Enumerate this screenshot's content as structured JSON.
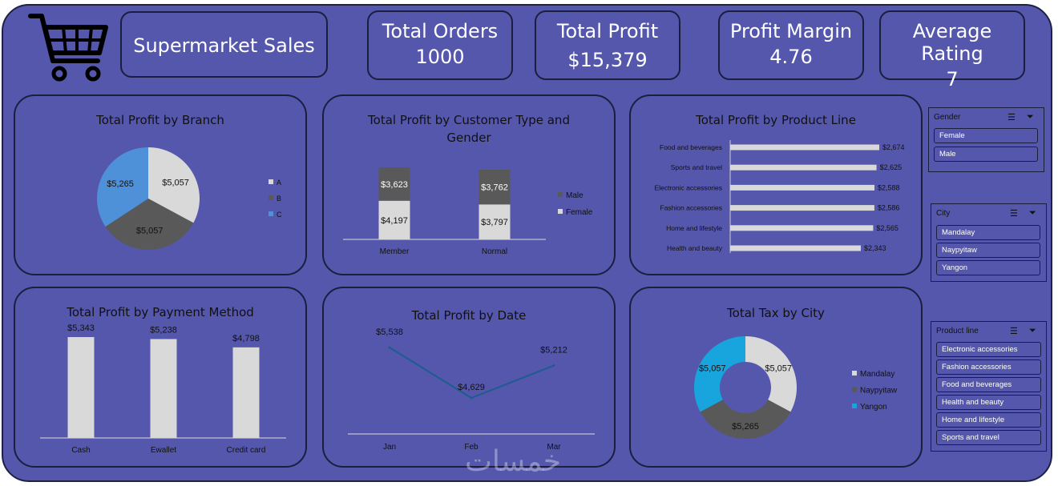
{
  "header": {
    "title": "Supermarket Sales",
    "kpis": [
      {
        "label": "Total Orders",
        "value": "1000"
      },
      {
        "label": "Total Profit",
        "value": "$15,379"
      },
      {
        "label": "Profit Margin",
        "value": "4.76"
      },
      {
        "label": "Average Rating",
        "value": "7"
      }
    ]
  },
  "colors": {
    "background": "#5457ac",
    "border": "#1b1e3e",
    "light": "#d9d9d9",
    "dark": "#595959",
    "blue": "#4f91d8",
    "cyan": "#18a4dc",
    "line": "#1d5c8e"
  },
  "icons": {
    "logo": "shopping-cart-icon",
    "multiselect": "multi-select-icon",
    "clear_filter": "clear-filter-icon"
  },
  "chart_data": [
    {
      "type": "pie",
      "title": "Total Profit by Branch",
      "categories": [
        "A",
        "B",
        "C"
      ],
      "values": [
        5057,
        5057,
        5265
      ],
      "labels": [
        "$5,057",
        "$5,057",
        "$5,265"
      ],
      "legend": "right"
    },
    {
      "type": "bar",
      "stacked": true,
      "title": "Total Profit by Customer Type and Gender",
      "categories": [
        "Member",
        "Normal"
      ],
      "series": [
        {
          "name": "Female",
          "values": [
            4197,
            3797
          ],
          "labels": [
            "$4,197",
            "$3,797"
          ]
        },
        {
          "name": "Male",
          "values": [
            3623,
            3762
          ],
          "labels": [
            "$3,623",
            "$3,762"
          ]
        }
      ],
      "legend": "right"
    },
    {
      "type": "bar",
      "orientation": "horizontal",
      "title": "Total Profit by Product Line",
      "categories": [
        "Food and beverages",
        "Sports and travel",
        "Electronic accessories",
        "Fashion accessories",
        "Home and lifestyle",
        "Health and beauty"
      ],
      "values": [
        2674,
        2625,
        2588,
        2586,
        2565,
        2343
      ],
      "labels": [
        "$2,674",
        "$2,625",
        "$2,588",
        "$2,586",
        "$2,565",
        "$2,343"
      ]
    },
    {
      "type": "bar",
      "title": "Total Profit by Payment Method",
      "categories": [
        "Cash",
        "Ewallet",
        "Credit card"
      ],
      "values": [
        5343,
        5238,
        4798
      ],
      "labels": [
        "$5,343",
        "$5,238",
        "$4,798"
      ]
    },
    {
      "type": "line",
      "title": "Total Profit by Date",
      "categories": [
        "Jan",
        "Feb",
        "Mar"
      ],
      "values": [
        5538,
        4629,
        5212
      ],
      "labels": [
        "$5,538",
        "$4,629",
        "$5,212"
      ]
    },
    {
      "type": "pie",
      "donut": true,
      "title": "Total Tax by City",
      "categories": [
        "Mandalay",
        "Naypyitaw",
        "Yangon"
      ],
      "values": [
        5057,
        5265,
        5057
      ],
      "labels": [
        "$5,057",
        "$5,265",
        "$5,057"
      ],
      "legend": "right"
    }
  ],
  "slicers": {
    "gender": {
      "title": "Gender",
      "items": [
        "Female",
        "Male"
      ]
    },
    "city": {
      "title": "City",
      "items": [
        "Mandalay",
        "Naypyitaw",
        "Yangon"
      ]
    },
    "product_line": {
      "title": "Product line",
      "items": [
        "Electronic accessories",
        "Fashion accessories",
        "Food and beverages",
        "Health and beauty",
        "Home and lifestyle",
        "Sports and travel"
      ]
    }
  },
  "watermark": "خمسات"
}
